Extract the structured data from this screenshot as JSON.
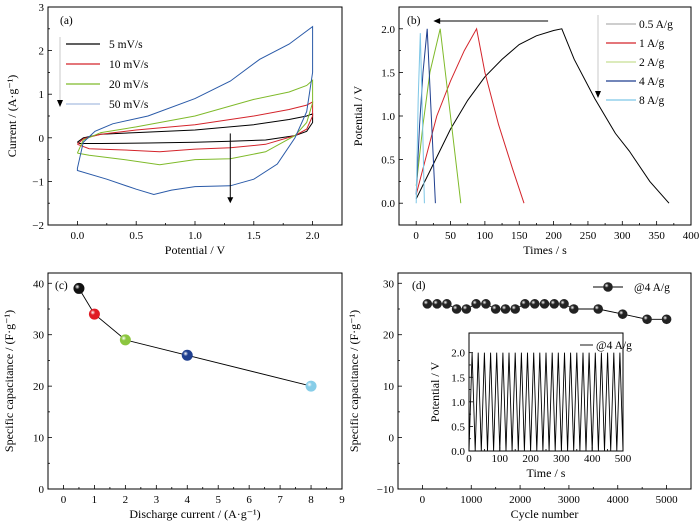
{
  "chart_data": [
    {
      "panel": "(a)",
      "type": "line",
      "title": "",
      "xlabel": "Potential / V",
      "ylabel": "Current / (A·g⁻¹)",
      "xlim": [
        -0.25,
        2.25
      ],
      "ylim": [
        -2,
        3
      ],
      "xticks": [
        0.0,
        0.5,
        1.0,
        1.5,
        2.0
      ],
      "xtick_labels": [
        "0.0",
        "0.5",
        "1.0",
        "1.5",
        "2.0"
      ],
      "yticks": [
        -2,
        -1,
        0,
        1,
        2,
        3
      ],
      "ytick_labels": [
        "−2",
        "−1",
        "0",
        "1",
        "2",
        "3"
      ],
      "legend_position": "top-left",
      "annotations": [
        "arrow: increasing scan rate (down)"
      ],
      "series": [
        {
          "name": "5 mV/s",
          "color": "#000000",
          "x": [
            0.0,
            0.05,
            0.2,
            0.5,
            1.0,
            1.5,
            1.8,
            1.95,
            2.0,
            2.0,
            1.95,
            1.85,
            1.6,
            1.3,
            1.0,
            0.6,
            0.2,
            0.02,
            0.0
          ],
          "y": [
            -0.1,
            0.0,
            0.08,
            0.12,
            0.18,
            0.3,
            0.42,
            0.5,
            0.55,
            0.35,
            0.15,
            0.05,
            -0.05,
            -0.08,
            -0.1,
            -0.12,
            -0.13,
            -0.13,
            -0.1
          ]
        },
        {
          "name": "10 mV/s",
          "color": "#d4242b",
          "x": [
            0.0,
            0.05,
            0.2,
            0.5,
            1.0,
            1.5,
            1.8,
            1.95,
            2.0,
            2.0,
            1.95,
            1.85,
            1.6,
            1.3,
            1.0,
            0.7,
            0.4,
            0.1,
            0.0
          ],
          "y": [
            -0.15,
            -0.02,
            0.08,
            0.18,
            0.3,
            0.5,
            0.65,
            0.75,
            0.82,
            0.5,
            0.2,
            0.05,
            -0.15,
            -0.23,
            -0.26,
            -0.32,
            -0.28,
            -0.25,
            -0.15
          ]
        },
        {
          "name": "20 mV/s",
          "color": "#7fba2a",
          "x": [
            0.0,
            0.05,
            0.2,
            0.5,
            1.0,
            1.5,
            1.8,
            1.95,
            2.0,
            2.0,
            1.95,
            1.85,
            1.6,
            1.3,
            1.0,
            0.7,
            0.4,
            0.1,
            0.0
          ],
          "y": [
            -0.35,
            -0.05,
            0.12,
            0.25,
            0.5,
            0.88,
            1.05,
            1.2,
            1.32,
            0.8,
            0.35,
            0.05,
            -0.32,
            -0.48,
            -0.5,
            -0.62,
            -0.5,
            -0.4,
            -0.35
          ]
        },
        {
          "name": "50 mV/s",
          "color": "#2a5aa8",
          "legend_color": "#a9bde0",
          "x": [
            0.0,
            0.05,
            0.15,
            0.3,
            0.6,
            1.0,
            1.3,
            1.55,
            1.8,
            2.0,
            2.0,
            1.95,
            1.85,
            1.7,
            1.5,
            1.3,
            1.0,
            0.8,
            0.65,
            0.5,
            0.25,
            0.0,
            0.0
          ],
          "y": [
            -0.7,
            -0.1,
            0.15,
            0.32,
            0.5,
            0.9,
            1.3,
            1.8,
            2.15,
            2.55,
            1.5,
            0.6,
            0.0,
            -0.6,
            -0.95,
            -1.1,
            -1.12,
            -1.2,
            -1.3,
            -1.18,
            -0.95,
            -0.75,
            -0.7
          ]
        }
      ]
    },
    {
      "panel": "(b)",
      "type": "line",
      "title": "",
      "xlabel": "Times / s",
      "ylabel": "Potential / V",
      "xlim": [
        -25,
        400
      ],
      "ylim": [
        -0.25,
        2.25
      ],
      "xticks": [
        0,
        50,
        100,
        150,
        200,
        250,
        300,
        350,
        400
      ],
      "xtick_labels": [
        "0",
        "50",
        "100",
        "150",
        "200",
        "250",
        "300",
        "350",
        "400"
      ],
      "yticks": [
        0.0,
        0.5,
        1.0,
        1.5,
        2.0
      ],
      "ytick_labels": [
        "0.0",
        "0.5",
        "1.0",
        "1.5",
        "2.0"
      ],
      "legend_position": "top-right",
      "annotations": [
        "arrow: decreasing time with current density (left)",
        "arrow: legend order (down)"
      ],
      "series": [
        {
          "name": "0.5 A/g",
          "color": "#000000",
          "legend_color": "#b0b0b0",
          "x": [
            0,
            25,
            50,
            75,
            100,
            125,
            150,
            175,
            200,
            212,
            230,
            260,
            290,
            310,
            340,
            368
          ],
          "y": [
            0.05,
            0.45,
            0.85,
            1.18,
            1.45,
            1.65,
            1.82,
            1.92,
            1.98,
            2.0,
            1.65,
            1.2,
            0.8,
            0.6,
            0.25,
            0.0
          ]
        },
        {
          "name": "1 A/g",
          "color": "#d4242b",
          "x": [
            0,
            15,
            30,
            50,
            70,
            88,
            100,
            120,
            140,
            157
          ],
          "y": [
            0.1,
            0.55,
            1.0,
            1.4,
            1.75,
            2.0,
            1.5,
            0.9,
            0.4,
            0.0
          ]
        },
        {
          "name": "2 A/g",
          "color": "#7fba2a",
          "legend_color": "#c7df95",
          "x": [
            0,
            10,
            20,
            35,
            50,
            65
          ],
          "y": [
            0.2,
            0.9,
            1.5,
            2.0,
            1.0,
            0.0
          ]
        },
        {
          "name": "4 A/g",
          "color": "#1f3f8f",
          "x": [
            0,
            5,
            10,
            16,
            22,
            28
          ],
          "y": [
            0.1,
            0.9,
            1.5,
            2.0,
            1.0,
            0.0
          ]
        },
        {
          "name": "8 A/g",
          "color": "#7dc6e6",
          "x": [
            0,
            3,
            6,
            9,
            12
          ],
          "y": [
            0.0,
            1.2,
            1.95,
            1.0,
            0.0
          ]
        }
      ]
    },
    {
      "panel": "(c)",
      "type": "scatter",
      "title": "",
      "xlabel": "Discharge current / (A·g⁻¹)",
      "ylabel": "Specific capacitance / (F·g⁻¹)",
      "xlim": [
        -0.5,
        9
      ],
      "ylim": [
        0,
        42
      ],
      "xticks": [
        0,
        1,
        2,
        3,
        4,
        5,
        6,
        7,
        8,
        9
      ],
      "xtick_labels": [
        "0",
        "1",
        "2",
        "3",
        "4",
        "5",
        "6",
        "7",
        "8",
        "9"
      ],
      "yticks": [
        0,
        10,
        20,
        30,
        40
      ],
      "ytick_labels": [
        "0",
        "10",
        "20",
        "30",
        "40"
      ],
      "x": [
        0.5,
        1,
        2,
        4,
        8
      ],
      "values": [
        39,
        34,
        29,
        26,
        20
      ],
      "point_colors": [
        "#111111",
        "#e01b24",
        "#8cc63f",
        "#1f3f8f",
        "#87cde8"
      ]
    },
    {
      "panel": "(d)",
      "type": "scatter",
      "title": "",
      "xlabel": "Cycle number",
      "ylabel": "Specific capacitance / (F·g⁻¹)",
      "xlim": [
        -500,
        5500
      ],
      "ylim": [
        -10,
        32
      ],
      "xticks": [
        0,
        1000,
        2000,
        3000,
        4000,
        5000
      ],
      "xtick_labels": [
        "0",
        "1000",
        "2000",
        "3000",
        "4000",
        "5000"
      ],
      "yticks": [
        -10,
        0,
        10,
        20,
        30
      ],
      "ytick_labels": [
        "−10",
        "0",
        "10",
        "20",
        "30"
      ],
      "legend": "@4 A/g",
      "legend_position": "top-right",
      "x": [
        100,
        300,
        500,
        700,
        900,
        1100,
        1300,
        1500,
        1700,
        1900,
        2100,
        2300,
        2500,
        2700,
        2900,
        3100,
        3600,
        4100,
        4600,
        5000
      ],
      "values": [
        26,
        26,
        26,
        25,
        25,
        26,
        26,
        25,
        25,
        25,
        26,
        26,
        26,
        26,
        26,
        25,
        25,
        24,
        23,
        23
      ],
      "inset": {
        "type": "line",
        "xlabel": "Time / s",
        "ylabel": "Potential / V",
        "xlim": [
          0,
          500
        ],
        "ylim": [
          0,
          2.4
        ],
        "xticks": [
          0,
          100,
          200,
          300,
          400,
          500
        ],
        "xtick_labels": [
          "0",
          "100",
          "200",
          "300",
          "400",
          "500"
        ],
        "yticks": [
          0.0,
          0.5,
          1.0,
          1.5,
          2.0
        ],
        "ytick_labels": [
          "0.0",
          "0.5",
          "1.0",
          "1.5",
          "2.0"
        ],
        "legend": "@4 A/g",
        "period_s": 20,
        "vmin": 0.0,
        "vmax": 2.0
      }
    }
  ],
  "panel_labels": [
    "(a)",
    "(b)",
    "(c)",
    "(d)"
  ]
}
